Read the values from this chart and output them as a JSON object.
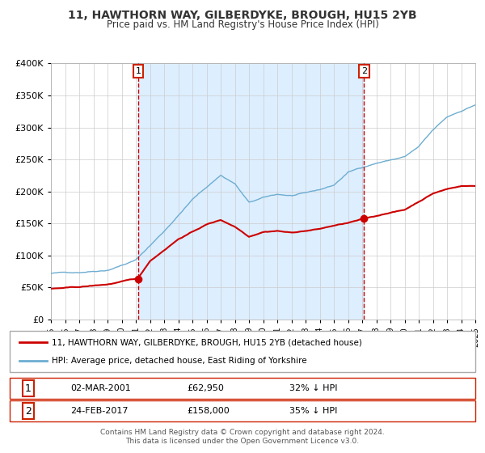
{
  "title": "11, HAWTHORN WAY, GILBERDYKE, BROUGH, HU15 2YB",
  "subtitle": "Price paid vs. HM Land Registry's House Price Index (HPI)",
  "legend_line1": "11, HAWTHORN WAY, GILBERDYKE, BROUGH, HU15 2YB (detached house)",
  "legend_line2": "HPI: Average price, detached house, East Riding of Yorkshire",
  "transaction1_date": "02-MAR-2001",
  "transaction1_price": "£62,950",
  "transaction1_hpi": "32% ↓ HPI",
  "transaction2_date": "24-FEB-2017",
  "transaction2_price": "£158,000",
  "transaction2_hpi": "35% ↓ HPI",
  "footer1": "Contains HM Land Registry data © Crown copyright and database right 2024.",
  "footer2": "This data is licensed under the Open Government Licence v3.0.",
  "hpi_color": "#6dadd1",
  "price_color": "#cc0000",
  "marker_color": "#cc0000",
  "vline_color": "#cc0000",
  "bg_shaded_color": "#ddeeff",
  "grid_color": "#cccccc",
  "title_color": "#333333",
  "label_box_color": "#cc2200",
  "ylim": [
    0,
    400000
  ],
  "year_start": 1995,
  "year_end": 2025,
  "transaction1_year": 2001.17,
  "transaction1_value": 62950,
  "transaction2_year": 2017.14,
  "transaction2_value": 158000
}
